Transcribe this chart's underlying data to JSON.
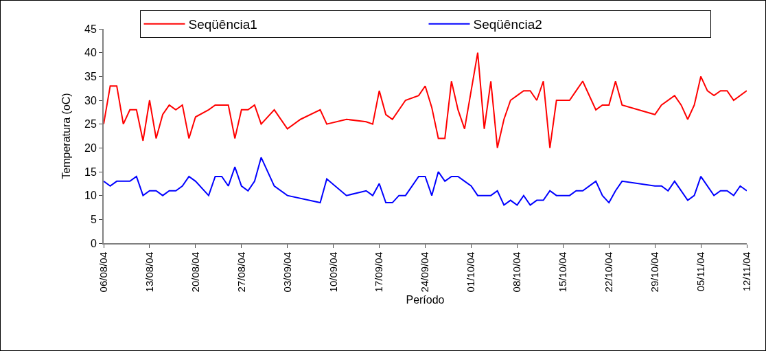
{
  "chart_data": {
    "type": "line",
    "xlabel": "Período",
    "ylabel": "Temperatura (oC)",
    "xlim": [
      "--08-06",
      "--11-12"
    ],
    "xticks": [
      {
        "value": "--08-06",
        "label": "06/08/04"
      },
      {
        "value": "--08-13",
        "label": "13/08/04"
      },
      {
        "value": "--08-20",
        "label": "20/08/04"
      },
      {
        "value": "--08-27",
        "label": "27/08/04"
      },
      {
        "value": "--09-03",
        "label": "03/09/04"
      },
      {
        "value": "--09-10",
        "label": "10/09/04"
      },
      {
        "value": "--09-17",
        "label": "17/09/04"
      },
      {
        "value": "--09-24",
        "label": "24/09/04"
      },
      {
        "value": "--10-01",
        "label": "01/10/04"
      },
      {
        "value": "--10-08",
        "label": "08/10/04"
      },
      {
        "value": "--10-15",
        "label": "15/10/04"
      },
      {
        "value": "--10-22",
        "label": "22/10/04"
      },
      {
        "value": "--10-29",
        "label": "29/10/04"
      },
      {
        "value": "--11-05",
        "label": "05/11/04"
      },
      {
        "value": "--11-12",
        "label": "12/11/04"
      }
    ],
    "ylim": [
      0,
      45
    ],
    "yticks": [
      0,
      5,
      10,
      15,
      20,
      25,
      30,
      35,
      40,
      45
    ],
    "grid": false,
    "legend": "top",
    "marker": "none",
    "line_style": "solid",
    "series": [
      {
        "name": "Seqüência1",
        "color": "#ff0000",
        "x": [
          "--08-06",
          "--08-07",
          "--08-08",
          "--08-09",
          "--08-10",
          "--08-11",
          "--08-12",
          "--08-13",
          "--08-14",
          "--08-15",
          "--08-16",
          "--08-17",
          "--08-18",
          "--08-19",
          "--08-20",
          "--08-22",
          "--08-23",
          "--08-24",
          "--08-25",
          "--08-26",
          "--08-27",
          "--08-28",
          "--08-29",
          "--08-30",
          "--09-01",
          "--09-03",
          "--09-05",
          "--09-08",
          "--09-09",
          "--09-12",
          "--09-15",
          "--09-16",
          "--09-17",
          "--09-18",
          "--09-19",
          "--09-21",
          "--09-23",
          "--09-24",
          "--09-25",
          "--09-26",
          "--09-27",
          "--09-28",
          "--09-29",
          "--09-30",
          "--10-02",
          "--10-03",
          "--10-04",
          "--10-05",
          "--10-06",
          "--10-07",
          "--10-08",
          "--10-09",
          "--10-10",
          "--10-11",
          "--10-12",
          "--10-13",
          "--10-14",
          "--10-16",
          "--10-17",
          "--10-18",
          "--10-20",
          "--10-21",
          "--10-22",
          "--10-23",
          "--10-24",
          "--10-29",
          "--10-30",
          "--11-01",
          "--11-02",
          "--11-03",
          "--11-04",
          "--11-05",
          "--11-06",
          "--11-07",
          "--11-08",
          "--11-09",
          "--11-10",
          "--11-12"
        ],
        "values": [
          25,
          33,
          33,
          25,
          28,
          28,
          21.5,
          30,
          22,
          27,
          29,
          28,
          29,
          22,
          26.5,
          28,
          29,
          29,
          29,
          22,
          28,
          28,
          29,
          25,
          28,
          24,
          26,
          28,
          25,
          26,
          25.5,
          25,
          32,
          27,
          26,
          30,
          31,
          33,
          28.5,
          22,
          22,
          34,
          28,
          24,
          40,
          24,
          34,
          20,
          26,
          30,
          31,
          32,
          32,
          30,
          34,
          20,
          30,
          30,
          32,
          34,
          28,
          29,
          29,
          34,
          29,
          27,
          29,
          31,
          29,
          26,
          29,
          35,
          32,
          31,
          32,
          32,
          30,
          32
        ]
      },
      {
        "name": "Seqüência2",
        "color": "#0000ff",
        "x": [
          "--08-06",
          "--08-07",
          "--08-08",
          "--08-09",
          "--08-10",
          "--08-11",
          "--08-12",
          "--08-13",
          "--08-14",
          "--08-15",
          "--08-16",
          "--08-17",
          "--08-18",
          "--08-19",
          "--08-20",
          "--08-22",
          "--08-23",
          "--08-24",
          "--08-25",
          "--08-26",
          "--08-27",
          "--08-28",
          "--08-29",
          "--08-30",
          "--09-01",
          "--09-03",
          "--09-08",
          "--09-09",
          "--09-12",
          "--09-15",
          "--09-16",
          "--09-17",
          "--09-18",
          "--09-19",
          "--09-20",
          "--09-21",
          "--09-23",
          "--09-24",
          "--09-25",
          "--09-26",
          "--09-27",
          "--09-28",
          "--09-29",
          "--09-30",
          "--10-01",
          "--10-02",
          "--10-03",
          "--10-04",
          "--10-05",
          "--10-06",
          "--10-07",
          "--10-08",
          "--10-09",
          "--10-10",
          "--10-11",
          "--10-12",
          "--10-13",
          "--10-14",
          "--10-15",
          "--10-16",
          "--10-17",
          "--10-18",
          "--10-20",
          "--10-21",
          "--10-22",
          "--10-23",
          "--10-24",
          "--10-29",
          "--10-30",
          "--10-31",
          "--11-01",
          "--11-03",
          "--11-04",
          "--11-05",
          "--11-07",
          "--11-08",
          "--11-09",
          "--11-10",
          "--11-11",
          "--11-12"
        ],
        "values": [
          13,
          12,
          13,
          13,
          13,
          14,
          10,
          11,
          11,
          10,
          11,
          11,
          12,
          14,
          13,
          10,
          14,
          14,
          12,
          16,
          12,
          11,
          13,
          18,
          12,
          10,
          8.5,
          13.5,
          10,
          11,
          10,
          12.5,
          8.5,
          8.5,
          10,
          10,
          14,
          14,
          10,
          15,
          13,
          14,
          14,
          13,
          12,
          10,
          10,
          10,
          11,
          8,
          9,
          8,
          10,
          8,
          9,
          9,
          11,
          10,
          10,
          10,
          11,
          11,
          13,
          10,
          8.5,
          11,
          13,
          12,
          12,
          11,
          13,
          9,
          10,
          14,
          10,
          11,
          11,
          10,
          12,
          11
        ]
      }
    ]
  }
}
